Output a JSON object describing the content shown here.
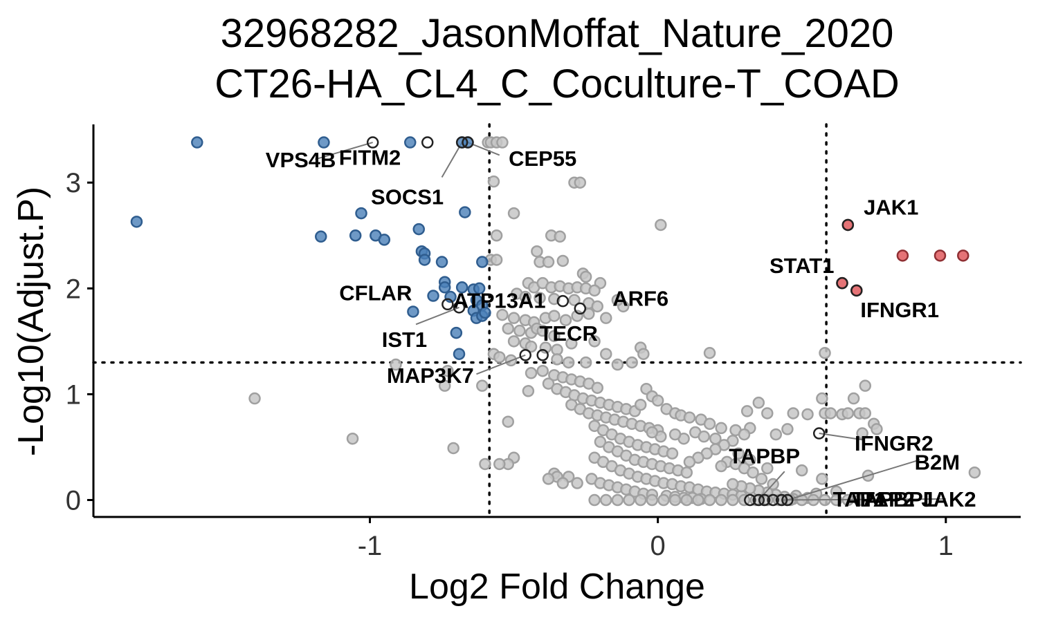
{
  "chart_data": {
    "type": "scatter",
    "title_line1": "32968282_JasonMoffat_Nature_2020",
    "title_line2": "CT26-HA_CL4_C_Coculture-T_COAD",
    "xlabel": "Log2 Fold Change",
    "ylabel": "-Log10(Adjust.P)",
    "xlim": [
      -1.96,
      1.26
    ],
    "ylim": [
      -0.16,
      3.55
    ],
    "x_ticks": [
      {
        "value": -1,
        "label": "-1"
      },
      {
        "value": 0,
        "label": "0"
      },
      {
        "value": 1,
        "label": "1"
      }
    ],
    "y_ticks": [
      {
        "value": 0,
        "label": "0"
      },
      {
        "value": 1,
        "label": "1"
      },
      {
        "value": 2,
        "label": "2"
      },
      {
        "value": 3,
        "label": "3"
      }
    ],
    "thresholds": {
      "log2fc": [
        -0.585,
        0.585
      ],
      "neg_log10_p": 1.3
    },
    "colors": {
      "down": "#4a7fb8",
      "up": "#e05a5e",
      "ns": "#c7c7c7",
      "ns_edge": "#a0a0a0",
      "labeled_edge": "#222222"
    },
    "down_points": [
      [
        -1.6,
        3.38
      ],
      [
        -1.16,
        3.38
      ],
      [
        -0.86,
        3.38
      ],
      [
        -0.68,
        3.38
      ],
      [
        -0.66,
        3.38
      ],
      [
        -1.81,
        2.63
      ],
      [
        -1.17,
        2.49
      ],
      [
        -1.03,
        2.71
      ],
      [
        -1.05,
        2.5
      ],
      [
        -0.98,
        2.5
      ],
      [
        -0.95,
        2.46
      ],
      [
        -0.83,
        2.56
      ],
      [
        -0.82,
        2.35
      ],
      [
        -0.81,
        2.33
      ],
      [
        -0.81,
        2.27
      ],
      [
        -0.67,
        2.72
      ],
      [
        -0.75,
        2.25
      ],
      [
        -0.61,
        2.25
      ],
      [
        -0.74,
        2.06
      ],
      [
        -0.74,
        2.01
      ],
      [
        -0.68,
        2.01
      ],
      [
        -0.64,
        1.99
      ],
      [
        -0.62,
        2.0
      ],
      [
        -0.78,
        1.93
      ],
      [
        -0.72,
        1.92
      ],
      [
        -0.63,
        1.89
      ],
      [
        -0.61,
        1.84
      ],
      [
        -0.85,
        1.78
      ],
      [
        -0.64,
        1.79
      ],
      [
        -0.63,
        1.72
      ],
      [
        -0.61,
        1.74
      ],
      [
        -0.6,
        1.77
      ],
      [
        -0.7,
        1.58
      ],
      [
        -0.69,
        1.38
      ]
    ],
    "up_points": [
      [
        0.66,
        2.6
      ],
      [
        0.64,
        2.05
      ],
      [
        0.69,
        1.98
      ],
      [
        0.85,
        2.31
      ],
      [
        0.98,
        2.31
      ],
      [
        1.06,
        2.31
      ]
    ],
    "labeled_points": [
      {
        "gene": "VPS4B",
        "x": -0.99,
        "y": 3.38
      },
      {
        "gene": "FITM2",
        "x": -0.8,
        "y": 3.38
      },
      {
        "gene": "SOCS1",
        "x": -0.68,
        "y": 3.38
      },
      {
        "gene": "CEP55",
        "x": -0.66,
        "y": 3.38
      },
      {
        "gene": "JAK1",
        "x": 0.66,
        "y": 2.6
      },
      {
        "gene": "STAT1",
        "x": 0.64,
        "y": 2.05
      },
      {
        "gene": "IFNGR1",
        "x": 0.69,
        "y": 1.98
      },
      {
        "gene": "CFLAR",
        "x": -0.73,
        "y": 1.85
      },
      {
        "gene": "IST1",
        "x": -0.69,
        "y": 1.82
      },
      {
        "gene": "ATP13A1",
        "x": -0.33,
        "y": 1.88
      },
      {
        "gene": "ARF6",
        "x": -0.27,
        "y": 1.81
      },
      {
        "gene": "TECR",
        "x": -0.4,
        "y": 1.37
      },
      {
        "gene": "MAP3K7",
        "x": -0.46,
        "y": 1.37
      },
      {
        "gene": "IFNGR2",
        "x": 0.56,
        "y": 0.63
      },
      {
        "gene": "TAPBP",
        "x": 0.35,
        "y": 0.0
      },
      {
        "gene": "B2M",
        "x": 0.45,
        "y": 0.0
      },
      {
        "gene": "TAP1",
        "x": 0.37,
        "y": 0.0
      },
      {
        "gene": "TAP2",
        "x": 0.4,
        "y": 0.0
      },
      {
        "gene": "TAPBPL",
        "x": 0.32,
        "y": 0.0
      },
      {
        "gene": "JAK2",
        "x": 0.43,
        "y": 0.0
      }
    ],
    "label_texts": [
      {
        "text": "VPS4B",
        "x": -1.24,
        "y": 3.2
      },
      {
        "text": "FITM2",
        "x": -1.0,
        "y": 3.22
      },
      {
        "text": "SOCS1",
        "x": -0.87,
        "y": 2.85
      },
      {
        "text": "CEP55",
        "x": -0.4,
        "y": 3.21
      },
      {
        "text": "JAK1",
        "x": 0.81,
        "y": 2.75
      },
      {
        "text": "STAT1",
        "x": 0.5,
        "y": 2.2
      },
      {
        "text": "IFNGR1",
        "x": 0.84,
        "y": 1.78
      },
      {
        "text": "CFLAR",
        "x": -0.98,
        "y": 1.94
      },
      {
        "text": "IST1",
        "x": -0.88,
        "y": 1.5
      },
      {
        "text": "ATP13A1",
        "x": -0.55,
        "y": 1.87
      },
      {
        "text": "ARF6",
        "x": -0.06,
        "y": 1.89
      },
      {
        "text": "TECR",
        "x": -0.31,
        "y": 1.56
      },
      {
        "text": "MAP3K7",
        "x": -0.79,
        "y": 1.16
      },
      {
        "text": "IFNGR2",
        "x": 0.82,
        "y": 0.52
      },
      {
        "text": "TAPBP",
        "x": 0.37,
        "y": 0.4
      },
      {
        "text": "B2M",
        "x": 0.97,
        "y": 0.34
      },
      {
        "text": "TAP1",
        "x": 0.7,
        "y": -0.01
      },
      {
        "text": "TAP2",
        "x": 0.8,
        "y": -0.01
      },
      {
        "text": "TAPBPL",
        "x": 0.82,
        "y": -0.01
      },
      {
        "text": "JAK2",
        "x": 1.01,
        "y": -0.01
      }
    ],
    "leader_lines": [
      [
        -0.99,
        3.38,
        -1.19,
        3.22
      ],
      [
        -0.68,
        3.38,
        -0.75,
        3.05
      ],
      [
        -0.66,
        3.38,
        -0.55,
        3.26
      ],
      [
        -0.69,
        1.82,
        -0.84,
        1.66
      ],
      [
        -0.46,
        1.37,
        -0.63,
        1.19
      ],
      [
        0.56,
        0.63,
        0.71,
        0.57
      ],
      [
        0.35,
        0.0,
        0.44,
        0.27
      ],
      [
        0.45,
        0.0,
        0.91,
        0.38
      ],
      [
        0.43,
        0.0,
        1.0,
        0.01
      ]
    ],
    "ns_points": [
      [
        -0.59,
        3.38
      ],
      [
        -0.58,
        3.38
      ],
      [
        -0.56,
        3.38
      ],
      [
        -0.54,
        3.38
      ],
      [
        -0.57,
        3.01
      ],
      [
        -0.29,
        3.0
      ],
      [
        -0.27,
        3.0
      ],
      [
        -0.5,
        2.71
      ],
      [
        0.01,
        2.6
      ],
      [
        -0.56,
        2.5
      ],
      [
        -0.37,
        2.5
      ],
      [
        -0.34,
        2.49
      ],
      [
        -0.42,
        2.35
      ],
      [
        -0.58,
        2.27
      ],
      [
        -0.56,
        2.27
      ],
      [
        -0.41,
        2.25
      ],
      [
        -0.38,
        2.25
      ],
      [
        -0.33,
        2.26
      ],
      [
        -0.26,
        2.14
      ],
      [
        -0.25,
        2.11
      ],
      [
        -0.2,
        2.05
      ],
      [
        -0.45,
        2.05
      ],
      [
        -0.43,
        2.01
      ],
      [
        -0.4,
        2.05
      ],
      [
        -0.37,
        2.01
      ],
      [
        -0.34,
        2.02
      ],
      [
        -0.31,
        2.0
      ],
      [
        -0.28,
        2.01
      ],
      [
        -0.25,
        2.0
      ],
      [
        -0.22,
        1.98
      ],
      [
        -0.49,
        1.95
      ],
      [
        -0.46,
        1.92
      ],
      [
        -0.41,
        1.91
      ],
      [
        -0.36,
        1.9
      ],
      [
        -0.29,
        1.89
      ],
      [
        -0.24,
        1.86
      ],
      [
        -0.21,
        1.83
      ],
      [
        -0.12,
        1.83
      ],
      [
        -0.14,
        1.89
      ],
      [
        -0.54,
        1.75
      ],
      [
        -0.5,
        1.72
      ],
      [
        -0.46,
        1.7
      ],
      [
        -0.43,
        1.68
      ],
      [
        -0.39,
        1.72
      ],
      [
        -0.36,
        1.74
      ],
      [
        -0.32,
        1.7
      ],
      [
        -0.28,
        1.74
      ],
      [
        -0.24,
        1.76
      ],
      [
        -0.18,
        1.72
      ],
      [
        -0.52,
        1.62
      ],
      [
        -0.48,
        1.6
      ],
      [
        -0.44,
        1.58
      ],
      [
        -0.42,
        1.62
      ],
      [
        -0.4,
        1.6
      ],
      [
        -0.36,
        1.55
      ],
      [
        -0.5,
        1.5
      ],
      [
        -0.46,
        1.48
      ],
      [
        -0.44,
        1.45
      ],
      [
        -0.39,
        1.44
      ],
      [
        -0.35,
        1.42
      ],
      [
        -0.3,
        1.48
      ],
      [
        -0.22,
        1.5
      ],
      [
        -0.18,
        1.38
      ],
      [
        -0.06,
        1.44
      ],
      [
        -0.05,
        1.38
      ],
      [
        0.18,
        1.39
      ],
      [
        0.58,
        1.39
      ],
      [
        -0.57,
        1.38
      ],
      [
        -0.55,
        1.35
      ],
      [
        -0.51,
        1.32
      ],
      [
        -0.35,
        1.33
      ],
      [
        -0.31,
        1.3
      ],
      [
        -0.25,
        1.3
      ],
      [
        -0.14,
        1.28
      ],
      [
        -0.09,
        1.3
      ],
      [
        -0.91,
        1.28
      ],
      [
        -0.73,
        1.22
      ],
      [
        -0.74,
        1.08
      ],
      [
        -0.61,
        1.08
      ],
      [
        -0.45,
        1.03
      ],
      [
        -1.4,
        0.96
      ],
      [
        -0.52,
        0.74
      ],
      [
        -0.5,
        0.4
      ],
      [
        -0.52,
        0.34
      ],
      [
        -0.55,
        0.34
      ],
      [
        -0.6,
        0.34
      ],
      [
        -1.06,
        0.58
      ],
      [
        -0.71,
        0.49
      ],
      [
        -0.36,
        0.25
      ],
      [
        -0.35,
        0.22
      ],
      [
        -0.31,
        0.22
      ],
      [
        -0.38,
        0.2
      ],
      [
        -0.33,
        0.16
      ],
      [
        -0.28,
        0.16
      ],
      [
        -0.44,
        1.2
      ],
      [
        -0.4,
        1.22
      ],
      [
        -0.36,
        1.18
      ],
      [
        -0.33,
        1.16
      ],
      [
        -0.3,
        1.14
      ],
      [
        -0.27,
        1.12
      ],
      [
        -0.24,
        1.1
      ],
      [
        -0.21,
        1.06
      ],
      [
        -0.38,
        1.1
      ],
      [
        -0.35,
        1.05
      ],
      [
        -0.32,
        1.02
      ],
      [
        -0.29,
        0.99
      ],
      [
        -0.26,
        0.96
      ],
      [
        -0.23,
        0.94
      ],
      [
        -0.2,
        0.92
      ],
      [
        -0.17,
        0.9
      ],
      [
        -0.14,
        0.88
      ],
      [
        -0.11,
        0.86
      ],
      [
        -0.08,
        0.84
      ],
      [
        -0.3,
        0.9
      ],
      [
        -0.27,
        0.86
      ],
      [
        -0.24,
        0.82
      ],
      [
        -0.21,
        0.8
      ],
      [
        -0.18,
        0.78
      ],
      [
        -0.15,
        0.76
      ],
      [
        -0.12,
        0.74
      ],
      [
        -0.09,
        0.72
      ],
      [
        -0.06,
        0.7
      ],
      [
        -0.03,
        0.68
      ],
      [
        0.0,
        0.66
      ],
      [
        -0.22,
        0.7
      ],
      [
        -0.19,
        0.66
      ],
      [
        -0.16,
        0.62
      ],
      [
        -0.13,
        0.58
      ],
      [
        -0.1,
        0.55
      ],
      [
        -0.07,
        0.52
      ],
      [
        -0.04,
        0.5
      ],
      [
        -0.01,
        0.48
      ],
      [
        0.02,
        0.46
      ],
      [
        0.05,
        0.44
      ],
      [
        -0.2,
        0.55
      ],
      [
        -0.17,
        0.5
      ],
      [
        -0.14,
        0.46
      ],
      [
        -0.11,
        0.42
      ],
      [
        -0.08,
        0.38
      ],
      [
        -0.05,
        0.36
      ],
      [
        -0.02,
        0.34
      ],
      [
        0.01,
        0.32
      ],
      [
        0.04,
        0.3
      ],
      [
        0.07,
        0.28
      ],
      [
        0.1,
        0.26
      ],
      [
        -0.22,
        0.4
      ],
      [
        -0.19,
        0.36
      ],
      [
        -0.16,
        0.32
      ],
      [
        -0.13,
        0.28
      ],
      [
        -0.1,
        0.25
      ],
      [
        -0.07,
        0.22
      ],
      [
        -0.04,
        0.2
      ],
      [
        -0.01,
        0.18
      ],
      [
        0.02,
        0.16
      ],
      [
        0.05,
        0.15
      ],
      [
        0.08,
        0.13
      ],
      [
        0.11,
        0.12
      ],
      [
        0.14,
        0.1
      ],
      [
        0.17,
        0.08
      ],
      [
        0.2,
        0.07
      ],
      [
        0.23,
        0.06
      ],
      [
        0.26,
        0.05
      ],
      [
        0.29,
        0.04
      ],
      [
        -0.23,
        0.2
      ],
      [
        -0.2,
        0.16
      ],
      [
        -0.17,
        0.14
      ],
      [
        -0.14,
        0.12
      ],
      [
        -0.11,
        0.1
      ],
      [
        -0.08,
        0.08
      ],
      [
        -0.05,
        0.06
      ],
      [
        -0.02,
        0.05
      ],
      [
        0.03,
        0.04
      ],
      [
        0.06,
        0.03
      ],
      [
        0.09,
        0.02
      ],
      [
        0.12,
        0.02
      ],
      [
        0.15,
        0.01
      ],
      [
        -0.04,
        1.05
      ],
      [
        -0.02,
        0.98
      ],
      [
        0.0,
        0.94
      ],
      [
        -0.06,
        0.9
      ],
      [
        0.03,
        0.86
      ],
      [
        0.06,
        0.82
      ],
      [
        0.08,
        0.8
      ],
      [
        0.11,
        0.78
      ],
      [
        0.15,
        0.76
      ],
      [
        0.18,
        0.72
      ],
      [
        0.22,
        0.68
      ],
      [
        0.27,
        0.66
      ],
      [
        0.35,
        0.92
      ],
      [
        0.31,
        0.84
      ],
      [
        0.38,
        0.82
      ],
      [
        0.32,
        0.68
      ],
      [
        0.3,
        0.62
      ],
      [
        0.26,
        0.56
      ],
      [
        0.23,
        0.52
      ],
      [
        0.2,
        0.48
      ],
      [
        0.17,
        0.44
      ],
      [
        0.14,
        0.4
      ],
      [
        0.11,
        0.36
      ],
      [
        0.09,
        0.58
      ],
      [
        0.06,
        0.62
      ],
      [
        0.01,
        0.6
      ],
      [
        -0.02,
        0.64
      ],
      [
        0.13,
        0.64
      ],
      [
        0.16,
        0.6
      ],
      [
        0.2,
        0.58
      ],
      [
        0.24,
        0.36
      ],
      [
        0.27,
        0.34
      ],
      [
        0.3,
        0.3
      ],
      [
        0.33,
        0.26
      ],
      [
        0.36,
        0.2
      ],
      [
        0.4,
        0.15
      ],
      [
        0.47,
        0.82
      ],
      [
        0.52,
        0.81
      ],
      [
        0.57,
        0.96
      ],
      [
        0.58,
        0.82
      ],
      [
        0.6,
        0.82
      ],
      [
        0.64,
        0.81
      ],
      [
        0.66,
        0.82
      ],
      [
        0.68,
        0.96
      ],
      [
        0.7,
        0.82
      ],
      [
        0.72,
        0.82
      ],
      [
        0.72,
        1.08
      ],
      [
        0.75,
        0.72
      ],
      [
        0.76,
        0.67
      ],
      [
        0.71,
        0.63
      ],
      [
        0.45,
        0.67
      ],
      [
        0.41,
        0.62
      ],
      [
        0.32,
        0.38
      ],
      [
        0.28,
        0.44
      ],
      [
        0.22,
        0.32
      ],
      [
        0.38,
        0.3
      ],
      [
        0.5,
        0.28
      ],
      [
        0.57,
        0.2
      ],
      [
        0.73,
        0.23
      ],
      [
        1.1,
        0.26
      ],
      [
        0.62,
        0.08
      ],
      [
        0.55,
        0.06
      ],
      [
        0.48,
        0.04
      ],
      [
        0.52,
        0.02
      ],
      [
        0.47,
        0.01
      ],
      [
        0.44,
        0.03
      ],
      [
        0.41,
        0.05
      ],
      [
        0.38,
        0.07
      ],
      [
        0.35,
        0.09
      ],
      [
        0.32,
        0.11
      ],
      [
        0.29,
        0.13
      ],
      [
        0.26,
        0.15
      ],
      [
        -0.22,
        0.0
      ],
      [
        -0.18,
        0.0
      ],
      [
        -0.14,
        0.0
      ],
      [
        -0.1,
        0.0
      ],
      [
        -0.06,
        0.0
      ],
      [
        -0.02,
        0.0
      ],
      [
        0.02,
        0.0
      ],
      [
        0.06,
        0.0
      ],
      [
        0.1,
        0.0
      ],
      [
        0.14,
        0.0
      ],
      [
        0.18,
        0.0
      ],
      [
        0.22,
        0.0
      ],
      [
        0.26,
        0.0
      ],
      [
        0.3,
        0.0
      ],
      [
        0.34,
        0.0
      ],
      [
        0.38,
        0.0
      ],
      [
        0.42,
        0.0
      ],
      [
        0.46,
        0.0
      ],
      [
        0.5,
        0.0
      ],
      [
        0.54,
        0.0
      ],
      [
        0.58,
        0.0
      ],
      [
        0.62,
        0.0
      ],
      [
        0.66,
        0.0
      ],
      [
        0.7,
        0.0
      ]
    ]
  }
}
